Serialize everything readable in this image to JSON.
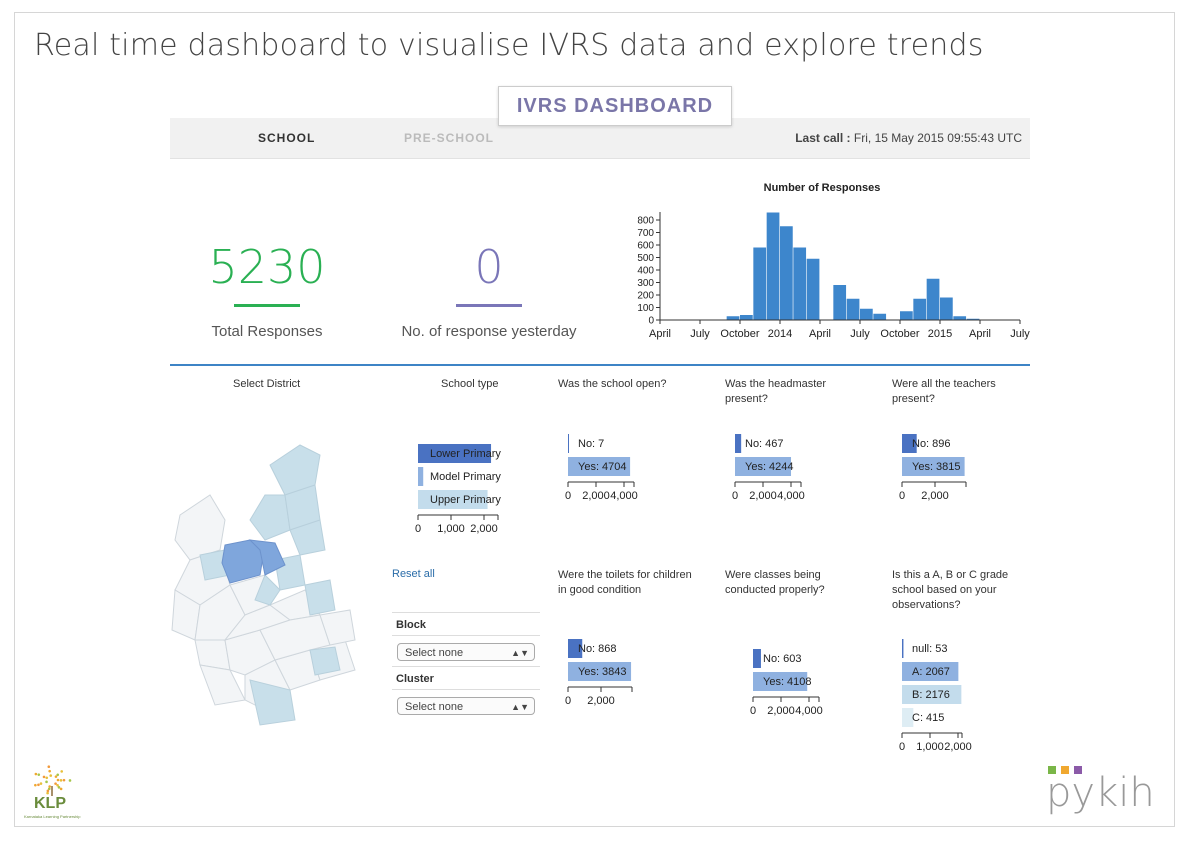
{
  "slide_title": "Real time dashboard to visualise IVRS data and explore trends",
  "dashboard_title": "IVRS DASHBOARD",
  "nav": {
    "tab_school": "SCHOOL",
    "tab_preschool": "PRE-SCHOOL",
    "last_call_label": "Last call :",
    "last_call_value": "Fri, 15 May 2015 09:55:43 UTC"
  },
  "kpis": {
    "total_value": "5230",
    "total_label": "Total Responses",
    "total_color": "#2ab053",
    "yesterday_value": "0",
    "yesterday_label": "No. of response yesterday",
    "yesterday_color": "#7a76b8"
  },
  "colors": {
    "bar_blue": "#3d86cc",
    "dark_bar": "#4a72c2",
    "mid_bar": "#8fb1e0",
    "light_bar": "#c3dcec",
    "map_highlight": "#7fa6dc",
    "map_light": "#c8dfea"
  },
  "chart_data": [
    {
      "type": "bar",
      "title": "Number of Responses",
      "x_tick_labels": [
        "April",
        "July",
        "October",
        "2014",
        "April",
        "July",
        "October",
        "2015",
        "April",
        "July"
      ],
      "y_ticks": [
        0,
        100,
        200,
        300,
        400,
        500,
        600,
        700,
        800
      ],
      "ylim": [
        0,
        880
      ],
      "values": [
        0,
        0,
        0,
        0,
        0,
        30,
        40,
        580,
        860,
        750,
        580,
        490,
        0,
        280,
        170,
        90,
        50,
        0,
        70,
        170,
        330,
        180,
        30,
        10,
        0,
        0,
        0
      ],
      "bin_start": "2013-04",
      "bin_width": "half-month-approx"
    },
    {
      "type": "bar",
      "title": "School type",
      "orientation": "horizontal",
      "categories": [
        "Lower Primary",
        "Model Primary",
        "Upper Primary"
      ],
      "values": [
        2100,
        150,
        2000
      ],
      "x_ticks": [
        "0",
        "1,000",
        "2,000"
      ],
      "xlim": [
        0,
        2300
      ]
    },
    {
      "type": "bar",
      "title": "Was the school open?",
      "orientation": "horizontal",
      "categories": [
        "No: 7",
        "Yes: 4704"
      ],
      "values": [
        7,
        4704
      ],
      "x_ticks": [
        "0",
        "2,000",
        "4,000"
      ],
      "xlim": [
        0,
        5000
      ]
    },
    {
      "type": "bar",
      "title": "Was the headmaster present?",
      "orientation": "horizontal",
      "categories": [
        "No: 467",
        "Yes: 4244"
      ],
      "values": [
        467,
        4244
      ],
      "x_ticks": [
        "0",
        "2,000",
        "4,000"
      ],
      "xlim": [
        0,
        5000
      ]
    },
    {
      "type": "bar",
      "title": "Were all the teachers present?",
      "orientation": "horizontal",
      "categories": [
        "No: 896",
        "Yes: 3815"
      ],
      "values": [
        896,
        3815
      ],
      "x_ticks": [
        "0",
        "2,000"
      ],
      "xlim": [
        0,
        3900
      ]
    },
    {
      "type": "bar",
      "title": "Were the toilets for children in good condition",
      "orientation": "horizontal",
      "categories": [
        "No: 868",
        "Yes: 3843"
      ],
      "values": [
        868,
        3843
      ],
      "x_ticks": [
        "0",
        "2,000"
      ],
      "xlim": [
        0,
        3900
      ]
    },
    {
      "type": "bar",
      "title": "Were classes being conducted properly?",
      "orientation": "horizontal",
      "categories": [
        "No: 603",
        "Yes: 4108"
      ],
      "values": [
        603,
        4108
      ],
      "x_ticks": [
        "0",
        "2,000",
        "4,000"
      ],
      "xlim": [
        0,
        5000
      ]
    },
    {
      "type": "bar",
      "title": "Is this a A, B or C grade school based on your observations?",
      "orientation": "horizontal",
      "categories": [
        "null: 53",
        "A: 2067",
        "B: 2176",
        "C: 415"
      ],
      "values": [
        53,
        2067,
        2176,
        415
      ],
      "x_ticks": [
        "0",
        "1,000",
        "2,000"
      ],
      "xlim": [
        0,
        2200
      ]
    }
  ],
  "labels": {
    "select_district": "Select District",
    "school_type": "School type",
    "reset_all": "Reset all",
    "block": "Block",
    "cluster": "Cluster",
    "select_none": "Select none"
  },
  "q_titles": {
    "q1": [
      "Was the school open?"
    ],
    "q2": [
      "Was the headmaster",
      "present?"
    ],
    "q3": [
      "Were all the teachers",
      "present?"
    ],
    "q4": [
      "Were the toilets for children",
      "in good condition"
    ],
    "q5": [
      "Were classes being",
      "conducted properly?"
    ],
    "q6": [
      "Is this a A, B or C grade",
      "school based on your",
      "observations?"
    ]
  },
  "logos": {
    "klp_text": "KLP",
    "klp_sub": "Karnataka Learning Partnership",
    "pykih_text": "pykih",
    "pykih_dots": [
      "#7ab648",
      "#f0a830",
      "#8b5aa8"
    ]
  }
}
